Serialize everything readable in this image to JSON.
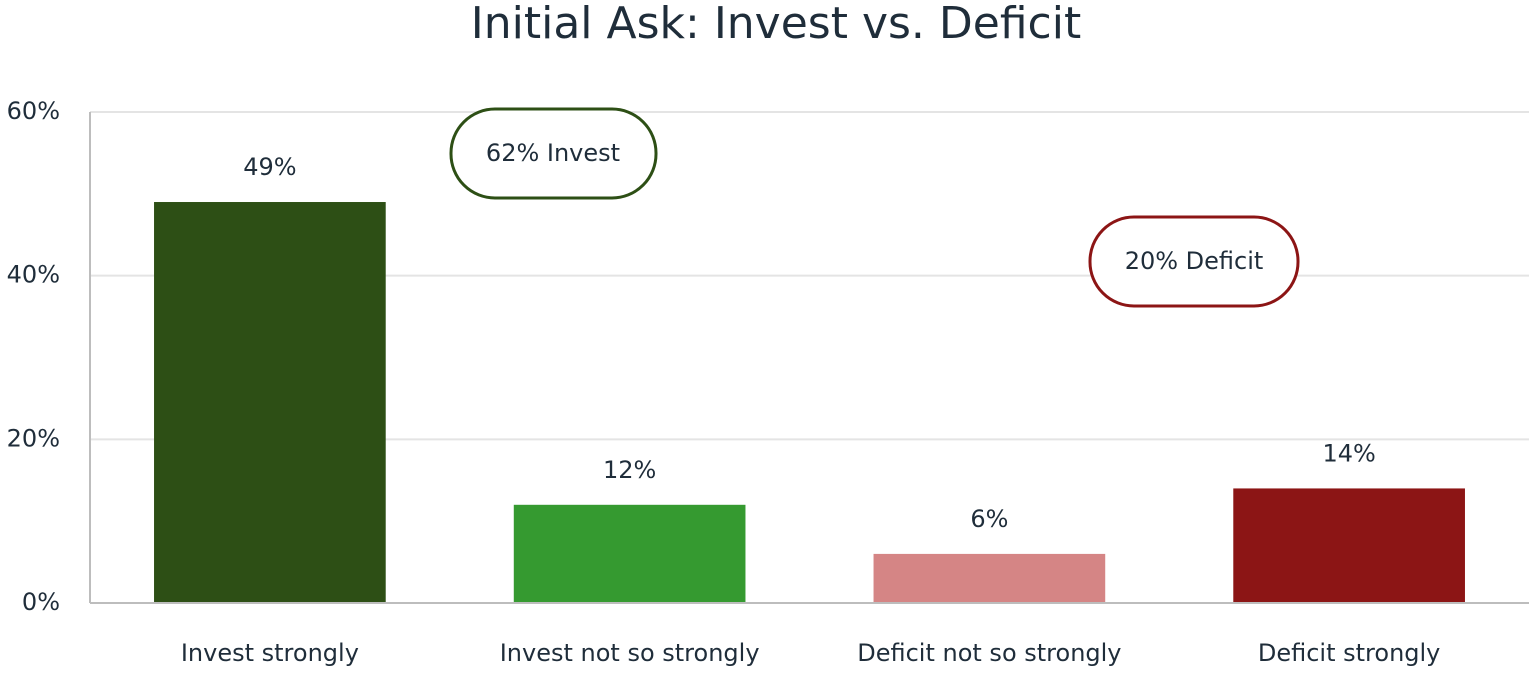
{
  "chart_data": {
    "type": "bar",
    "title": "Initial Ask: Invest vs. Deficit",
    "categories": [
      "Invest strongly",
      "Invest not so strongly",
      "Deficit not so strongly",
      "Deficit strongly"
    ],
    "values": [
      49,
      12,
      6,
      14
    ],
    "value_labels": [
      "49%",
      "12%",
      "6%",
      "14%"
    ],
    "colors": [
      "#2d4f15",
      "#359a30",
      "#d58585",
      "#8c1515"
    ],
    "ylim": [
      0,
      60
    ],
    "yticks": [
      {
        "value": 0,
        "label": "0%"
      },
      {
        "value": 20,
        "label": "20%"
      },
      {
        "value": 40,
        "label": "40%"
      },
      {
        "value": 60,
        "label": "60%"
      }
    ],
    "grid": true,
    "annotations": [
      {
        "text": "62% Invest",
        "color": "#2d4f15"
      },
      {
        "text": "20% Deficit",
        "color": "#8c1515"
      }
    ]
  }
}
